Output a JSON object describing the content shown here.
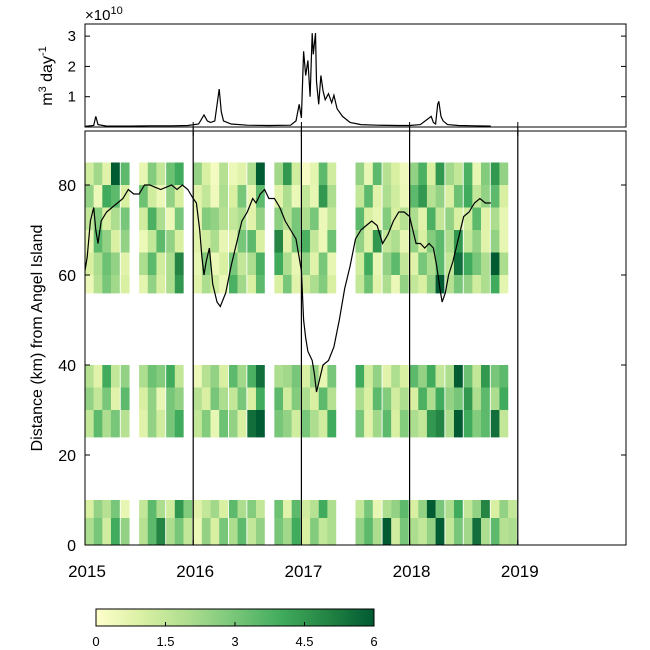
{
  "chart_data": [
    {
      "type": "line",
      "panel": "top",
      "exponent_label": "×10",
      "exponent_power": "10",
      "ylabel_main": "m",
      "ylabel_sup1": "3",
      "ylabel_mid": " day",
      "ylabel_sup2": "-1",
      "ylim": [
        0,
        3.4
      ],
      "yticks": [
        1,
        2,
        3
      ],
      "ytick_labels": [
        "1",
        "2",
        "3"
      ],
      "xlim": [
        2015,
        2020
      ],
      "line_color": "#000000",
      "x": [
        2015.0,
        2015.08,
        2015.1,
        2015.12,
        2015.2,
        2015.4,
        2015.6,
        2015.8,
        2015.95,
        2016.05,
        2016.1,
        2016.13,
        2016.16,
        2016.2,
        2016.24,
        2016.26,
        2016.28,
        2016.35,
        2016.5,
        2016.7,
        2016.9,
        2016.95,
        2016.98,
        2017.0,
        2017.02,
        2017.04,
        2017.06,
        2017.08,
        2017.1,
        2017.11,
        2017.13,
        2017.14,
        2017.16,
        2017.18,
        2017.2,
        2017.22,
        2017.25,
        2017.28,
        2017.3,
        2017.33,
        2017.38,
        2017.45,
        2017.55,
        2017.7,
        2017.9,
        2018.0,
        2018.1,
        2018.2,
        2018.22,
        2018.24,
        2018.26,
        2018.27,
        2018.29,
        2018.31,
        2018.35,
        2018.45,
        2018.6,
        2018.75
      ],
      "y": [
        0.02,
        0.05,
        0.35,
        0.08,
        0.03,
        0.03,
        0.04,
        0.04,
        0.05,
        0.1,
        0.4,
        0.2,
        0.15,
        0.2,
        1.25,
        0.5,
        0.2,
        0.1,
        0.06,
        0.05,
        0.06,
        0.2,
        0.75,
        0.3,
        2.5,
        1.7,
        2.2,
        1.0,
        3.1,
        2.4,
        3.1,
        1.5,
        0.75,
        1.7,
        1.2,
        0.9,
        1.1,
        0.8,
        1.05,
        0.6,
        0.35,
        0.15,
        0.08,
        0.06,
        0.05,
        0.05,
        0.08,
        0.35,
        0.15,
        0.1,
        0.75,
        0.85,
        0.35,
        0.2,
        0.08,
        0.05,
        0.04,
        0.03
      ]
    },
    {
      "type": "heatmap",
      "panel": "bottom",
      "ylabel": "Distance (km) from Angel Island",
      "ylim": [
        0,
        92
      ],
      "yticks": [
        0,
        20,
        40,
        60,
        80
      ],
      "ytick_labels": [
        "0",
        "20",
        "40",
        "60",
        "80"
      ],
      "xlim": [
        2015,
        2020
      ],
      "xticks": [
        2015,
        2016,
        2017,
        2018,
        2019
      ],
      "xtick_labels": [
        "2015",
        "2016",
        "2017",
        "2018",
        "2019"
      ],
      "vlines": [
        2016,
        2017,
        2018,
        2019
      ],
      "colormap": [
        "#ffffcc",
        "#d9f0a3",
        "#addd8e",
        "#78c679",
        "#41ab5d",
        "#238443",
        "#005a32"
      ],
      "colorbar_range": [
        0,
        6
      ],
      "colorbar_ticks": [
        0,
        1.5,
        3,
        4.5,
        6
      ],
      "colorbar_tick_labels": [
        "0",
        "1.5",
        "3",
        "4.5",
        "6"
      ],
      "distance_bands_km": [
        [
          80,
          85
        ],
        [
          75,
          80
        ],
        [
          70,
          75
        ],
        [
          65,
          70
        ],
        [
          60,
          65
        ],
        [
          56,
          60
        ],
        [
          35,
          40
        ],
        [
          30,
          35
        ],
        [
          24,
          30
        ],
        [
          6,
          10
        ],
        [
          0,
          6
        ]
      ],
      "time_columns_start": [
        2015.0,
        2015.08,
        2015.16,
        2015.24,
        2015.33,
        2015.41,
        2015.5,
        2015.58,
        2015.66,
        2015.75,
        2015.83,
        2015.91,
        2016.0,
        2016.08,
        2016.16,
        2016.24,
        2016.33,
        2016.41,
        2016.5,
        2016.58,
        2016.66,
        2016.75,
        2016.83,
        2016.91,
        2017.0,
        2017.08,
        2017.16,
        2017.24,
        2017.33,
        2017.41,
        2017.5,
        2017.58,
        2017.66,
        2017.75,
        2017.83,
        2017.91,
        2018.0,
        2018.08,
        2018.16,
        2018.24,
        2018.33,
        2018.41,
        2018.5,
        2018.58,
        2018.66,
        2018.75,
        2018.83,
        2018.91
      ],
      "time_column_width": 0.078,
      "values": [
        [
          1.2,
          2.2,
          0.8,
          6.0,
          3.5,
          0.4,
          0.6,
          2.8,
          1.5,
          3.2,
          4.0,
          1.8,
          2.5,
          1.0,
          0.3,
          1.8,
          0.5,
          0.8,
          2.0,
          6.0,
          3.0,
          2.2,
          4.5,
          1.2,
          0.2,
          0.7,
          3.5,
          1.2,
          0.5,
          1.0,
          2.5,
          0.6,
          3.5,
          1.8,
          1.0,
          0.4,
          2.5,
          3.8,
          1.0,
          4.5,
          2.2,
          1.5,
          3.8,
          0.6,
          2.8,
          4.5,
          2.5,
          0.5
        ],
        [
          2.5,
          0.5,
          4.0,
          3.5,
          1.0,
          2.0,
          3.2,
          1.2,
          0.5,
          2.5,
          1.0,
          3.5,
          0.8,
          1.5,
          0.4,
          2.0,
          1.0,
          3.0,
          0.6,
          3.5,
          1.5,
          0.8,
          2.0,
          0.5,
          1.5,
          0.6,
          4.5,
          2.0,
          0.8,
          2.5,
          1.5,
          3.5,
          0.8,
          2.0,
          1.2,
          0.5,
          3.5,
          4.5,
          1.8,
          2.5,
          1.0,
          3.2,
          4.0,
          1.5,
          2.5,
          3.5,
          1.0,
          0.6
        ],
        [
          1.5,
          2.8,
          1.0,
          2.0,
          3.0,
          0.6,
          1.2,
          3.8,
          2.0,
          0.5,
          3.0,
          1.5,
          0.6,
          2.8,
          2.5,
          1.8,
          1.5,
          2.0,
          0.8,
          2.5,
          4.0,
          2.6,
          1.8,
          3.0,
          2.0,
          3.0,
          0.5,
          1.5,
          0.7,
          2.0,
          3.5,
          1.0,
          0.6,
          2.8,
          1.0,
          1.8,
          2.0,
          0.8,
          3.8,
          1.5,
          2.5,
          1.0,
          1.2,
          3.5,
          0.8,
          2.0,
          0.6,
          1.0
        ],
        [
          0.6,
          3.5,
          2.5,
          1.0,
          2.5,
          3.5,
          0.5,
          1.5,
          3.5,
          2.5,
          1.0,
          2.2,
          0.8,
          1.2,
          2.0,
          0.6,
          0.8,
          3.0,
          3.5,
          1.0,
          4.5,
          5.0,
          0.8,
          3.0,
          3.8,
          1.5,
          0.5,
          3.2,
          1.2,
          0.8,
          2.5,
          0.9,
          4.5,
          1.5,
          2.0,
          0.6,
          2.5,
          1.0,
          2.8,
          3.5,
          2.0,
          4.5,
          1.5,
          2.5,
          0.8,
          2.5,
          0.6,
          1.5
        ],
        [
          1.0,
          2.0,
          3.2,
          2.5,
          0.8,
          1.8,
          2.0,
          3.5,
          1.2,
          2.0,
          5.0,
          1.5,
          0.6,
          2.8,
          0.5,
          1.0,
          3.0,
          1.5,
          2.0,
          3.8,
          2.5,
          4.0,
          2.0,
          0.6,
          2.5,
          0.8,
          3.0,
          0.6,
          1.0,
          2.2,
          1.2,
          4.0,
          0.6,
          2.5,
          3.5,
          1.5,
          0.8,
          3.0,
          2.0,
          3.5,
          1.5,
          5.5,
          4.0,
          3.0,
          2.0,
          6.0,
          2.0,
          1.0
        ],
        [
          0.5,
          1.8,
          3.0,
          2.2,
          1.0,
          3.5,
          0.7,
          2.5,
          1.0,
          2.0,
          4.5,
          3.0,
          0.8,
          2.0,
          1.2,
          0.5,
          3.8,
          2.2,
          1.0,
          3.5,
          2.0,
          1.0,
          3.0,
          0.8,
          1.2,
          2.0,
          2.8,
          1.0,
          2.2,
          0.5,
          1.5,
          3.2,
          0.8,
          2.0,
          0.5,
          2.5,
          1.5,
          1.0,
          2.5,
          6.0,
          1.8,
          3.0,
          2.5,
          1.2,
          2.0,
          4.0,
          0.7,
          1.8
        ],
        [
          1.8,
          0.8,
          4.0,
          1.5,
          2.5,
          0.6,
          2.0,
          3.2,
          2.8,
          4.0,
          1.5,
          2.0,
          0.5,
          1.8,
          2.5,
          1.0,
          3.5,
          2.2,
          3.8,
          5.5,
          1.5,
          2.0,
          2.2,
          3.0,
          1.0,
          2.5,
          0.6,
          3.0,
          0.8,
          1.5,
          4.0,
          1.2,
          2.5,
          0.8,
          2.0,
          1.0,
          3.5,
          2.5,
          4.0,
          1.5,
          2.0,
          6.0,
          3.2,
          1.5,
          4.5,
          3.0,
          3.5,
          1.0
        ],
        [
          2.5,
          1.5,
          3.0,
          0.8,
          3.5,
          2.0,
          1.0,
          2.5,
          0.6,
          3.0,
          2.5,
          3.5,
          1.8,
          1.0,
          3.0,
          2.0,
          1.5,
          3.0,
          1.0,
          4.0,
          2.5,
          3.5,
          1.2,
          2.8,
          2.0,
          1.0,
          3.5,
          1.8,
          0.5,
          3.0,
          2.0,
          1.0,
          3.5,
          2.8,
          1.2,
          2.0,
          1.0,
          3.8,
          2.0,
          4.0,
          2.5,
          3.0,
          4.5,
          2.0,
          3.5,
          2.0,
          4.0,
          1.5
        ],
        [
          1.5,
          3.5,
          2.0,
          3.0,
          1.8,
          4.0,
          0.8,
          2.5,
          1.2,
          3.0,
          4.0,
          2.0,
          1.5,
          2.8,
          0.6,
          3.2,
          2.5,
          1.0,
          5.5,
          6.0,
          1.8,
          3.0,
          2.5,
          1.2,
          3.0,
          2.0,
          1.2,
          4.0,
          1.5,
          2.5,
          3.0,
          0.8,
          2.2,
          3.5,
          1.0,
          2.8,
          2.0,
          1.5,
          4.5,
          5.0,
          2.0,
          6.0,
          4.0,
          2.8,
          3.5,
          5.5,
          1.5,
          2.5
        ],
        [
          1.0,
          2.5,
          1.8,
          3.0,
          0.6,
          2.0,
          1.5,
          3.5,
          2.0,
          1.2,
          4.5,
          2.8,
          0.8,
          1.5,
          2.2,
          1.0,
          3.5,
          2.0,
          2.8,
          1.5,
          2.0,
          3.2,
          0.8,
          3.5,
          1.2,
          1.8,
          4.0,
          2.0,
          1.0,
          2.8,
          1.5,
          3.0,
          0.6,
          2.0,
          2.5,
          3.5,
          1.0,
          2.5,
          6.0,
          3.0,
          2.0,
          4.0,
          1.5,
          2.5,
          5.0,
          1.0,
          2.5,
          1.5
        ],
        [
          2.0,
          3.0,
          1.2,
          4.0,
          2.5,
          1.0,
          1.8,
          3.5,
          5.0,
          2.0,
          3.0,
          1.5,
          0.5,
          2.5,
          1.0,
          3.0,
          2.0,
          3.5,
          1.5,
          2.5,
          0.8,
          3.0,
          2.2,
          4.0,
          1.0,
          2.8,
          1.5,
          2.0,
          3.0,
          1.0,
          2.5,
          3.5,
          2.0,
          6.0,
          1.2,
          3.0,
          2.0,
          1.5,
          2.5,
          6.0,
          1.5,
          3.0,
          2.2,
          5.5,
          2.0,
          3.5,
          1.8,
          2.0
        ]
      ],
      "missing_cells": [
        [
          0,
          5
        ],
        [
          1,
          5
        ],
        [
          2,
          5
        ],
        [
          3,
          5
        ],
        [
          4,
          5
        ],
        [
          5,
          5
        ],
        [
          6,
          5
        ],
        [
          7,
          5
        ],
        [
          8,
          5
        ],
        [
          9,
          5
        ],
        [
          10,
          5
        ],
        [
          0,
          11
        ],
        [
          1,
          11
        ],
        [
          2,
          11
        ],
        [
          3,
          11
        ],
        [
          4,
          11
        ],
        [
          5,
          11
        ],
        [
          6,
          11
        ],
        [
          7,
          11
        ],
        [
          8,
          11
        ],
        [
          0,
          20
        ],
        [
          1,
          20
        ],
        [
          2,
          20
        ],
        [
          3,
          20
        ],
        [
          4,
          20
        ],
        [
          5,
          20
        ],
        [
          6,
          20
        ],
        [
          7,
          20
        ],
        [
          8,
          20
        ],
        [
          9,
          20
        ],
        [
          10,
          20
        ],
        [
          0,
          28
        ],
        [
          1,
          28
        ],
        [
          2,
          28
        ],
        [
          3,
          28
        ],
        [
          4,
          28
        ],
        [
          5,
          28
        ],
        [
          6,
          28
        ],
        [
          7,
          28
        ],
        [
          8,
          28
        ],
        [
          9,
          28
        ],
        [
          10,
          28
        ],
        [
          0,
          29
        ],
        [
          1,
          29
        ],
        [
          2,
          29
        ],
        [
          3,
          29
        ],
        [
          4,
          29
        ],
        [
          5,
          29
        ],
        [
          6,
          29
        ],
        [
          7,
          29
        ],
        [
          8,
          29
        ],
        [
          9,
          29
        ],
        [
          10,
          29
        ],
        [
          0,
          47
        ],
        [
          1,
          47
        ],
        [
          2,
          47
        ],
        [
          3,
          47
        ],
        [
          4,
          47
        ],
        [
          5,
          47
        ],
        [
          6,
          47
        ],
        [
          7,
          47
        ],
        [
          8,
          47
        ],
        [
          6,
          47
        ]
      ],
      "overlay_line": {
        "x": [
          2015.0,
          2015.02,
          2015.05,
          2015.08,
          2015.1,
          2015.12,
          2015.15,
          2015.2,
          2015.25,
          2015.3,
          2015.35,
          2015.4,
          2015.45,
          2015.5,
          2015.55,
          2015.6,
          2015.65,
          2015.7,
          2015.8,
          2015.85,
          2015.9,
          2015.95,
          2016.0,
          2016.03,
          2016.06,
          2016.08,
          2016.1,
          2016.12,
          2016.15,
          2016.18,
          2016.22,
          2016.25,
          2016.3,
          2016.35,
          2016.4,
          2016.45,
          2016.5,
          2016.55,
          2016.58,
          2016.62,
          2016.66,
          2016.7,
          2016.75,
          2016.8,
          2016.85,
          2016.9,
          2016.95,
          2017.0,
          2017.02,
          2017.04,
          2017.06,
          2017.08,
          2017.1,
          2017.12,
          2017.14,
          2017.16,
          2017.2,
          2017.25,
          2017.3,
          2017.35,
          2017.4,
          2017.45,
          2017.5,
          2017.55,
          2017.6,
          2017.65,
          2017.7,
          2017.75,
          2017.8,
          2017.85,
          2017.9,
          2017.95,
          2018.0,
          2018.03,
          2018.06,
          2018.1,
          2018.14,
          2018.18,
          2018.22,
          2018.25,
          2018.28,
          2018.3,
          2018.33,
          2018.36,
          2018.4,
          2018.45,
          2018.5,
          2018.55,
          2018.6,
          2018.65,
          2018.7,
          2018.75
        ],
        "y": [
          61,
          64,
          72,
          75,
          70,
          67,
          72,
          74,
          75,
          76,
          77,
          79,
          78,
          78,
          80,
          80,
          79.5,
          79,
          80,
          79,
          80,
          79,
          77,
          76,
          70,
          64,
          60,
          63,
          66,
          58,
          54,
          53,
          56,
          62,
          67,
          72,
          74,
          77,
          76,
          78,
          79,
          77,
          77,
          75,
          72,
          70,
          68,
          61,
          50,
          46,
          43,
          42,
          41,
          38,
          34,
          36,
          40,
          41,
          44,
          50,
          57,
          62,
          68,
          70,
          71,
          72,
          71,
          67,
          69,
          72,
          74,
          74,
          73,
          70,
          67,
          67,
          66,
          67,
          66,
          62,
          57,
          54,
          56,
          60,
          63,
          68,
          73,
          74,
          76,
          77,
          76,
          76
        ]
      }
    }
  ]
}
